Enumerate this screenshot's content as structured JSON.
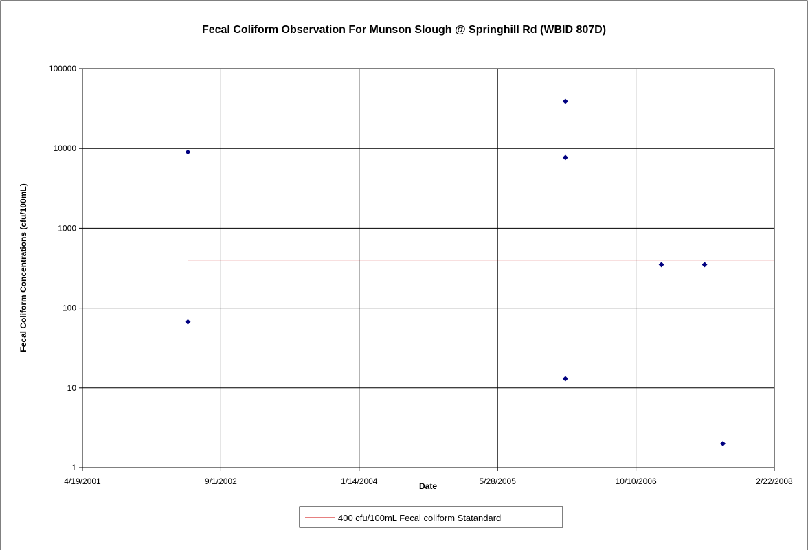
{
  "chart_data": {
    "type": "scatter",
    "title": "Fecal Coliform  Observation For Munson Slough @ Springhill Rd (WBID 807D)",
    "xlabel": "Date",
    "ylabel": "Fecal Coliform Concentrations (cfu/100mL)",
    "y_scale": "log",
    "ylim": [
      1,
      100000
    ],
    "xlim": [
      "2001-04-19",
      "2008-02-22"
    ],
    "x_ticks": [
      "4/19/2001",
      "9/1/2002",
      "1/14/2004",
      "5/28/2005",
      "10/10/2006",
      "2/22/2008"
    ],
    "y_ticks": [
      "1",
      "10",
      "100",
      "1000",
      "10000",
      "100000"
    ],
    "grid": true,
    "legend_position": "bottom",
    "series": [
      {
        "marker": "diamond",
        "color": "#000080",
        "points": [
          {
            "x": "2002-05-05",
            "y": 9000
          },
          {
            "x": "2002-05-05",
            "y": 67
          },
          {
            "x": "2006-01-28",
            "y": 39000
          },
          {
            "x": "2006-01-28",
            "y": 7700
          },
          {
            "x": "2006-01-28",
            "y": 13
          },
          {
            "x": "2007-01-10",
            "y": 350
          },
          {
            "x": "2007-06-15",
            "y": 350
          },
          {
            "x": "2007-08-20",
            "y": 2
          }
        ]
      },
      {
        "name": "400 cfu/100mL Fecal coliform Statandard",
        "type": "line",
        "color": "#cc0000",
        "points": [
          {
            "x": "2002-05-05",
            "y": 400
          },
          {
            "x": "2008-02-22",
            "y": 400
          }
        ]
      }
    ]
  }
}
